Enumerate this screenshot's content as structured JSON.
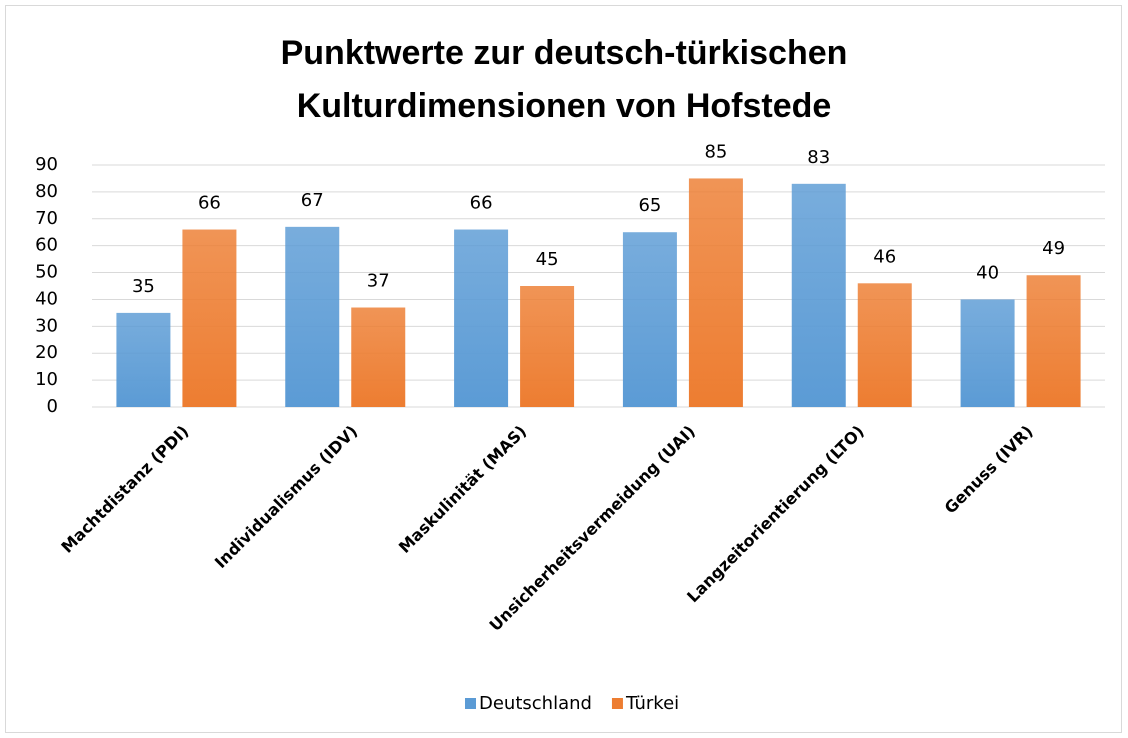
{
  "chart_data": {
    "type": "bar",
    "title": [
      "Punktwerte zur deutsch-türkischen",
      "Kulturdimensionen von Hofstede"
    ],
    "categories": [
      "Machtdistanz (PDI)",
      "Individualismus (IDV)",
      "Maskulinität (MAS)",
      "Unsicherheitsvermeidung (UAI)",
      "Langzeitorientierung (LTO)",
      "Genuss (IVR)"
    ],
    "series": [
      {
        "name": "Deutschland",
        "color": "#5b9bd5",
        "values": [
          35,
          67,
          66,
          65,
          83,
          40
        ]
      },
      {
        "name": "Türkei",
        "color": "#ed7d31",
        "values": [
          66,
          37,
          45,
          85,
          46,
          49
        ]
      }
    ],
    "ylim": [
      0,
      90
    ],
    "yticks": [
      0,
      10,
      20,
      30,
      40,
      50,
      60,
      70,
      80,
      90
    ],
    "grid": true,
    "legend": "bottom"
  }
}
